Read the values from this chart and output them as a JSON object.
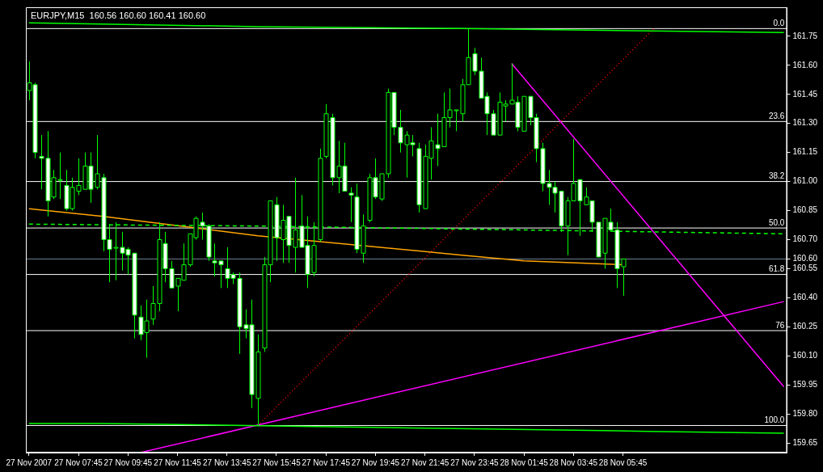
{
  "chart_data": {
    "type": "candlestick",
    "title": "EURJPY,M15  160.56 160.60 160.41 160.60",
    "color": "#00ff00",
    "colors": [
      "#000000",
      "#ffffff",
      "#ffffff",
      "#ffffff",
      "#000000",
      "#000000",
      "#ffffff",
      "#000000",
      "#000000",
      "#000000",
      "#ffffff",
      "#000000",
      "#ffffff",
      "#ffffff",
      "#000000",
      "#ffffff",
      "#ffffff",
      "#ffffff",
      "#ffffff",
      "#000000",
      "#000000",
      "#000000",
      "#ffffff",
      "#ffffff",
      "#000000",
      "#000000",
      "#000000",
      "#000000",
      "#ffffff",
      "#ffffff",
      "#ffffff",
      "#ffffff",
      "#ffffff",
      "#ffffff",
      "#ffffff",
      "#ffffff",
      "#ffffff",
      "#000000",
      "#000000",
      "#000000",
      "#ffffff",
      "#000000",
      "#ffffff",
      "#000000",
      "#ffffff",
      "#ffffff",
      "#000000",
      "#000000",
      "#000000",
      "#ffffff",
      "#000000",
      "#ffffff",
      "#ffffff",
      "#ffffff",
      "#000000",
      "#000000",
      "#ffffff",
      "#000000",
      "#000000",
      "#ffffff",
      "#ffffff",
      "#000000",
      "#ffffff",
      "#ffffff",
      "#000000",
      "#000000",
      "#ffffff",
      "#000000",
      "#000000",
      "#000000",
      "#000000",
      "#000000",
      "#ffffff",
      "#ffffff",
      "#ffffff",
      "#ffffff",
      "#000000",
      "#000000",
      "#000000",
      "#ffffff",
      "#000000",
      "#ffffff",
      "#ffffff",
      "#ffffff",
      "#ffffff",
      "#ffffff",
      "#ffffff",
      "#000000",
      "#000000",
      "#ffffff",
      "#000000",
      "#ffffff",
      "#ffffff",
      "#000000",
      "#ffffff",
      "#ffffff",
      "#000000",
      null,
      null,
      null,
      null,
      null,
      null,
      null,
      null,
      null,
      null,
      null,
      null,
      null,
      null,
      null,
      null,
      null,
      null,
      null,
      null,
      null,
      null,
      null,
      null,
      null,
      null
    ],
    "categories": [
      "27 Nov 2007",
      null,
      null,
      null,
      null,
      null,
      null,
      null,
      "27 Nov 07:45",
      null,
      null,
      null,
      null,
      null,
      null,
      null,
      "27 Nov 09:45",
      null,
      null,
      null,
      null,
      null,
      null,
      null,
      "27 Nov 11:45",
      null,
      null,
      null,
      null,
      null,
      null,
      null,
      "27 Nov 13:45",
      null,
      null,
      null,
      null,
      null,
      null,
      null,
      "27 Nov 15:45",
      null,
      null,
      null,
      null,
      null,
      null,
      null,
      "27 Nov 17:45",
      null,
      null,
      null,
      null,
      null,
      null,
      null,
      "27 Nov 19:45",
      null,
      null,
      null,
      null,
      null,
      null,
      null,
      "27 Nov 21:45",
      null,
      null,
      null,
      null,
      null,
      null,
      null,
      "27 Nov 23:45",
      null,
      null,
      null,
      null,
      null,
      null,
      null,
      "28 Nov 01:45",
      null,
      null,
      null,
      null,
      null,
      null,
      null,
      "28 Nov 03:45",
      null,
      null,
      null,
      null,
      null,
      null,
      null,
      "28 Nov 05:45",
      null,
      null,
      null,
      null,
      null,
      null,
      null,
      null,
      null,
      null,
      null,
      null,
      null,
      null,
      null,
      null,
      null,
      null,
      null,
      null,
      null,
      null,
      null,
      null,
      null,
      null
    ],
    "ohlc": [
      [
        161.47,
        161.62,
        161.42,
        161.51
      ],
      [
        161.5,
        161.51,
        161.12,
        161.15
      ],
      [
        161.13,
        161.24,
        160.96,
        161.12
      ],
      [
        161.12,
        161.26,
        160.82,
        160.9
      ],
      [
        160.92,
        161.06,
        160.91,
        161.02
      ],
      [
        161.01,
        161.15,
        160.91,
        161.01
      ],
      [
        160.98,
        161.06,
        160.85,
        160.86
      ],
      [
        160.86,
        161.02,
        160.85,
        160.97
      ],
      [
        160.95,
        161.12,
        160.93,
        160.98
      ],
      [
        160.96,
        161.15,
        160.96,
        161.08
      ],
      [
        161.08,
        161.15,
        160.89,
        160.96
      ],
      [
        160.97,
        161.24,
        160.96,
        161.04
      ],
      [
        161.02,
        161.04,
        160.64,
        160.7
      ],
      [
        160.7,
        160.78,
        160.48,
        160.65
      ],
      [
        160.66,
        160.79,
        160.49,
        160.66
      ],
      [
        160.66,
        160.74,
        160.54,
        160.63
      ],
      [
        160.65,
        160.66,
        160.52,
        160.62
      ],
      [
        160.63,
        160.63,
        160.19,
        160.31
      ],
      [
        160.3,
        160.36,
        160.18,
        160.21
      ],
      [
        160.22,
        160.39,
        160.09,
        160.28
      ],
      [
        160.29,
        160.46,
        160.26,
        160.37
      ],
      [
        160.37,
        160.79,
        160.33,
        160.7
      ],
      [
        160.68,
        160.74,
        160.48,
        160.55
      ],
      [
        160.55,
        160.59,
        160.45,
        160.45
      ],
      [
        160.46,
        160.5,
        160.33,
        160.5
      ],
      [
        160.49,
        160.68,
        160.49,
        160.57
      ],
      [
        160.57,
        160.73,
        160.56,
        160.73
      ],
      [
        160.71,
        160.82,
        160.7,
        160.81
      ],
      [
        160.79,
        160.84,
        160.7,
        160.77
      ],
      [
        160.77,
        160.78,
        160.59,
        160.61
      ],
      [
        160.59,
        160.68,
        160.51,
        160.58
      ],
      [
        160.59,
        160.59,
        160.45,
        160.57
      ],
      [
        160.55,
        160.66,
        160.45,
        160.5
      ],
      [
        160.52,
        160.53,
        160.47,
        160.5
      ],
      [
        160.5,
        160.53,
        160.11,
        160.25
      ],
      [
        160.26,
        160.34,
        160.19,
        160.24
      ],
      [
        160.26,
        160.39,
        159.83,
        159.9
      ],
      [
        159.88,
        160.21,
        159.74,
        160.12
      ],
      [
        160.14,
        160.61,
        160.12,
        160.57
      ],
      [
        160.57,
        160.9,
        160.48,
        160.9
      ],
      [
        160.88,
        160.92,
        160.59,
        160.71
      ],
      [
        160.7,
        160.88,
        160.58,
        160.8
      ],
      [
        160.82,
        160.82,
        160.58,
        160.67
      ],
      [
        160.66,
        161.02,
        160.53,
        160.75
      ],
      [
        160.77,
        160.93,
        160.66,
        160.66
      ],
      [
        160.67,
        160.82,
        160.45,
        160.52
      ],
      [
        160.53,
        160.79,
        160.51,
        160.67
      ],
      [
        160.7,
        161.17,
        160.69,
        161.12
      ],
      [
        161.13,
        161.4,
        161.12,
        161.35
      ],
      [
        161.33,
        161.35,
        160.98,
        161.02
      ],
      [
        161.02,
        161.21,
        160.94,
        161.08
      ],
      [
        161.08,
        161.2,
        160.95,
        160.95
      ],
      [
        160.94,
        160.97,
        160.79,
        160.93
      ],
      [
        160.92,
        160.99,
        160.63,
        160.65
      ],
      [
        160.63,
        160.83,
        160.58,
        160.77
      ],
      [
        160.8,
        161.04,
        160.79,
        161.02
      ],
      [
        161.02,
        161.12,
        160.91,
        160.92
      ],
      [
        160.91,
        161.04,
        160.9,
        161.04
      ],
      [
        161.04,
        161.48,
        161.02,
        161.46
      ],
      [
        161.46,
        161.46,
        161.24,
        161.28
      ],
      [
        161.28,
        161.37,
        161.15,
        161.2
      ],
      [
        161.19,
        161.26,
        161.02,
        161.24
      ],
      [
        161.2,
        161.24,
        161.13,
        161.19
      ],
      [
        161.17,
        161.2,
        160.84,
        160.88
      ],
      [
        160.86,
        161.19,
        160.86,
        161.13
      ],
      [
        161.12,
        161.28,
        161.01,
        161.21
      ],
      [
        161.19,
        161.35,
        161.08,
        161.17
      ],
      [
        161.18,
        161.46,
        161.18,
        161.33
      ],
      [
        161.33,
        161.48,
        161.28,
        161.37
      ],
      [
        161.37,
        161.37,
        161.26,
        161.37
      ],
      [
        161.35,
        161.53,
        161.31,
        161.5
      ],
      [
        161.5,
        161.79,
        161.5,
        161.64
      ],
      [
        161.66,
        161.69,
        161.55,
        161.57
      ],
      [
        161.57,
        161.64,
        161.43,
        161.43
      ],
      [
        161.44,
        161.46,
        161.24,
        161.35
      ],
      [
        161.35,
        161.37,
        161.24,
        161.24
      ],
      [
        161.24,
        161.46,
        161.24,
        161.41
      ],
      [
        161.39,
        161.42,
        161.31,
        161.4
      ],
      [
        161.4,
        161.61,
        161.4,
        161.42
      ],
      [
        161.41,
        161.44,
        161.26,
        161.28
      ],
      [
        161.26,
        161.44,
        161.26,
        161.44
      ],
      [
        161.44,
        161.44,
        161.29,
        161.33
      ],
      [
        161.33,
        161.35,
        161.1,
        161.17
      ],
      [
        161.17,
        161.2,
        160.95,
        160.99
      ],
      [
        160.99,
        161.06,
        160.88,
        160.97
      ],
      [
        160.97,
        161.0,
        160.84,
        160.94
      ],
      [
        160.95,
        160.95,
        160.74,
        160.77
      ],
      [
        160.77,
        160.92,
        160.62,
        160.9
      ],
      [
        160.9,
        161.22,
        160.9,
        160.99
      ],
      [
        161.01,
        161.01,
        160.72,
        160.9
      ],
      [
        160.88,
        160.97,
        160.88,
        160.92
      ],
      [
        160.9,
        160.9,
        160.74,
        160.79
      ],
      [
        160.79,
        160.79,
        160.61,
        160.61
      ],
      [
        160.63,
        160.81,
        160.55,
        160.81
      ],
      [
        160.79,
        160.86,
        160.74,
        160.75
      ],
      [
        160.75,
        160.79,
        160.45,
        160.55
      ],
      [
        160.56,
        160.6,
        160.41,
        160.6
      ],
      null,
      null,
      null,
      null,
      null,
      null,
      null,
      null,
      null,
      null,
      null,
      null,
      null,
      null,
      null,
      null,
      null,
      null,
      null,
      null,
      null,
      null,
      null,
      null,
      null,
      null
    ],
    "series": [
      {
        "type": "line",
        "color": "#00ff00",
        "values": [
          161.82,
          null,
          null,
          null,
          null,
          null,
          null,
          null,
          null,
          null,
          null,
          null,
          null,
          null,
          null,
          null,
          null,
          null,
          null,
          null,
          null,
          null,
          null,
          null,
          null,
          null,
          null,
          null,
          null,
          null,
          null,
          null,
          null,
          null,
          null,
          null,
          null,
          161.8,
          null,
          null,
          null,
          null,
          null,
          null,
          null,
          null,
          null,
          null,
          null,
          null,
          null,
          null,
          null,
          null,
          null,
          null,
          null,
          null,
          null,
          null,
          null,
          null,
          null,
          null,
          null,
          null,
          null,
          null,
          null,
          null,
          161.79,
          null,
          null,
          null,
          null,
          null,
          null,
          null,
          null,
          null,
          null,
          null,
          null,
          null,
          null,
          null,
          null,
          null,
          null,
          null,
          null,
          null,
          null,
          null,
          null,
          null,
          null,
          null,
          null,
          null,
          null,
          null,
          null,
          null,
          null,
          null,
          null,
          null,
          null,
          null,
          null,
          null,
          null,
          null,
          null,
          null,
          null,
          null,
          null,
          null,
          null,
          null,
          161.77
        ]
      },
      {
        "type": "line",
        "color": "#00ff00",
        "values": [
          159.75,
          null,
          null,
          null,
          null,
          null,
          null,
          null,
          null,
          null,
          null,
          null,
          159.75,
          null,
          null,
          null,
          null,
          null,
          null,
          null,
          null,
          null,
          null,
          null,
          null,
          null,
          null,
          null,
          null,
          null,
          null,
          null,
          null,
          null,
          null,
          159.74,
          null,
          null,
          null,
          null,
          null,
          null,
          null,
          null,
          null,
          null,
          null,
          null,
          null,
          null,
          null,
          null,
          null,
          null,
          null,
          null,
          null,
          null,
          null,
          null,
          null,
          null,
          null,
          null,
          null,
          null,
          null,
          null,
          null,
          null,
          null,
          null,
          null,
          null,
          null,
          null,
          null,
          null,
          null,
          null,
          null,
          null,
          null,
          null,
          null,
          null,
          null,
          null,
          null,
          null,
          null,
          null,
          null,
          null,
          null,
          null,
          null,
          null,
          null,
          null,
          159.71,
          null,
          null,
          null,
          null,
          null,
          null,
          null,
          null,
          null,
          null,
          null,
          null,
          null,
          null,
          null,
          null,
          null,
          null,
          null,
          null,
          null,
          159.7
        ]
      },
      {
        "type": "line",
        "color": "#00ff00",
        "line_style": "dashed",
        "values": [
          160.78,
          null,
          null,
          null,
          null,
          null,
          null,
          null,
          null,
          null,
          null,
          null,
          null,
          null,
          null,
          null,
          null,
          null,
          null,
          null,
          null,
          null,
          null,
          null,
          null,
          null,
          null,
          null,
          null,
          null,
          null,
          null,
          null,
          null,
          null,
          null,
          null,
          160.77,
          null,
          null,
          null,
          null,
          null,
          null,
          null,
          null,
          null,
          null,
          null,
          null,
          null,
          null,
          null,
          null,
          null,
          null,
          null,
          null,
          null,
          null,
          null,
          null,
          null,
          null,
          null,
          null,
          null,
          null,
          null,
          null,
          null,
          null,
          null,
          null,
          null,
          null,
          null,
          null,
          null,
          null,
          160.75,
          null,
          null,
          null,
          null,
          null,
          null,
          null,
          null,
          null,
          null,
          null,
          null,
          null,
          null,
          null,
          null,
          null,
          null,
          null,
          null,
          null,
          null,
          null,
          null,
          null,
          null,
          null,
          null,
          null,
          null,
          null,
          null,
          null,
          null,
          null,
          null,
          null,
          null,
          null,
          null,
          null,
          160.73
        ]
      },
      {
        "type": "line",
        "color": "#ffa500",
        "values": [
          160.86,
          null,
          null,
          null,
          null,
          null,
          null,
          null,
          null,
          null,
          null,
          null,
          160.82,
          null,
          null,
          null,
          null,
          null,
          null,
          null,
          null,
          null,
          null,
          null,
          null,
          null,
          null,
          null,
          null,
          null,
          null,
          null,
          null,
          null,
          null,
          null,
          null,
          160.72,
          null,
          null,
          null,
          null,
          null,
          null,
          null,
          null,
          null,
          null,
          null,
          null,
          null,
          null,
          null,
          null,
          null,
          null,
          null,
          null,
          null,
          null,
          null,
          null,
          null,
          null,
          null,
          null,
          null,
          null,
          null,
          null,
          160.62,
          null,
          null,
          null,
          null,
          null,
          null,
          null,
          null,
          null,
          160.59,
          null,
          null,
          null,
          null,
          null,
          null,
          null,
          null,
          null,
          null,
          null,
          null,
          null,
          null,
          null,
          160.57,
          null,
          null,
          null,
          null,
          null,
          null,
          null,
          null,
          null,
          null,
          null,
          null,
          null,
          null,
          null,
          null,
          null,
          null,
          null,
          null,
          null,
          null,
          null,
          null,
          null,
          null
        ]
      },
      {
        "type": "line",
        "color": "#ff0000",
        "line_style": "dotted",
        "values": [
          null,
          null,
          null,
          null,
          null,
          null,
          null,
          null,
          null,
          null,
          null,
          null,
          null,
          null,
          null,
          null,
          null,
          null,
          null,
          null,
          null,
          null,
          null,
          null,
          null,
          null,
          null,
          null,
          null,
          null,
          null,
          null,
          null,
          null,
          null,
          null,
          null,
          159.74,
          null,
          null,
          null,
          null,
          null,
          null,
          null,
          null,
          null,
          null,
          null,
          null,
          null,
          null,
          null,
          null,
          null,
          null,
          null,
          null,
          null,
          null,
          null,
          null,
          null,
          null,
          null,
          null,
          null,
          null,
          null,
          null,
          null,
          null,
          null,
          null,
          null,
          null,
          null,
          null,
          null,
          null,
          null,
          null,
          null,
          null,
          null,
          null,
          null,
          null,
          null,
          null,
          null,
          null,
          null,
          null,
          null,
          null,
          null,
          null,
          null,
          null,
          null,
          161.79,
          null,
          null,
          null,
          null,
          null,
          null,
          null,
          null,
          null,
          null,
          null,
          null,
          null,
          null,
          null,
          null,
          null,
          null,
          null,
          null,
          null
        ]
      },
      {
        "type": "line",
        "color": "#ff00ff",
        "values": [
          null,
          null,
          null,
          null,
          null,
          null,
          null,
          null,
          null,
          null,
          null,
          null,
          null,
          null,
          null,
          null,
          null,
          null,
          null,
          null,
          null,
          null,
          null,
          null,
          null,
          null,
          null,
          null,
          null,
          null,
          null,
          null,
          null,
          null,
          null,
          null,
          null,
          null,
          null,
          null,
          null,
          null,
          null,
          null,
          null,
          null,
          null,
          null,
          null,
          null,
          null,
          null,
          null,
          null,
          null,
          null,
          null,
          null,
          null,
          null,
          null,
          null,
          null,
          null,
          null,
          null,
          null,
          null,
          null,
          null,
          null,
          null,
          null,
          null,
          null,
          null,
          null,
          null,
          161.61,
          null,
          null,
          null,
          null,
          null,
          null,
          null,
          null,
          null,
          null,
          null,
          null,
          null,
          null,
          null,
          null,
          null,
          null,
          null,
          null,
          null,
          null,
          null,
          null,
          null,
          null,
          null,
          null,
          null,
          null,
          null,
          null,
          null,
          null,
          null,
          null,
          null,
          null,
          null,
          null,
          null,
          null,
          null,
          159.94
        ]
      },
      {
        "type": "line",
        "color": "#ff00ff",
        "values": [
          null,
          null,
          null,
          null,
          null,
          null,
          null,
          null,
          null,
          null,
          null,
          null,
          null,
          null,
          null,
          null,
          null,
          null,
          159.6,
          null,
          null,
          null,
          null,
          null,
          null,
          null,
          null,
          null,
          null,
          null,
          null,
          null,
          null,
          null,
          null,
          null,
          null,
          null,
          null,
          null,
          null,
          null,
          null,
          null,
          null,
          null,
          null,
          null,
          null,
          null,
          null,
          null,
          null,
          null,
          null,
          null,
          null,
          null,
          null,
          null,
          null,
          null,
          null,
          null,
          null,
          null,
          null,
          null,
          null,
          null,
          null,
          null,
          null,
          null,
          null,
          null,
          null,
          null,
          null,
          null,
          null,
          null,
          null,
          null,
          null,
          null,
          null,
          null,
          null,
          null,
          null,
          null,
          null,
          null,
          null,
          null,
          null,
          null,
          null,
          null,
          null,
          null,
          null,
          null,
          null,
          null,
          null,
          null,
          null,
          null,
          null,
          null,
          null,
          null,
          null,
          null,
          null,
          null,
          null,
          null,
          null,
          null,
          160.38
        ]
      }
    ],
    "ref_lines": [
      {
        "axis": "y",
        "value": 161.79,
        "color": "#ffffff"
      },
      {
        "axis": "y",
        "value": 161.31,
        "color": "#ffffff"
      },
      {
        "axis": "y",
        "value": 161.0,
        "color": "#ffffff"
      },
      {
        "axis": "y",
        "value": 160.76,
        "color": "#ffffff"
      },
      {
        "axis": "y",
        "value": 160.52,
        "color": "#ffffff"
      },
      {
        "axis": "y",
        "value": 160.23,
        "color": "#ffffff"
      },
      {
        "axis": "y",
        "value": 159.74,
        "color": "#ffffff"
      },
      {
        "axis": "y",
        "value": 160.6,
        "color": "#708090"
      }
    ],
    "annotations": [
      {
        "text": "0.0",
        "y": 161.79
      },
      {
        "text": "23.6",
        "y": 161.31
      },
      {
        "text": "38.2",
        "y": 161.0
      },
      {
        "text": "50.0",
        "y": 160.76
      },
      {
        "text": "61.8",
        "y": 160.52
      },
      {
        "text": "76",
        "y": 160.23
      },
      {
        "text": "100.0",
        "y": 159.74
      }
    ],
    "ylim": [
      159.6,
      161.9
    ],
    "yticks": [
      159.65,
      {
        "value": 159.8,
        "label": "159.80"
      },
      159.95,
      {
        "value": 160.1,
        "label": "160.10"
      },
      160.25,
      {
        "value": 160.4,
        "label": "160.40"
      },
      160.55,
      {
        "value": 160.6,
        "label": "160.60"
      },
      {
        "value": 160.7,
        "label": "160.70"
      },
      160.85,
      {
        "value": 161.0,
        "label": "161.00"
      },
      161.15,
      {
        "value": 161.3,
        "label": "161.30"
      },
      161.45,
      {
        "value": 161.6,
        "label": "161.60"
      },
      161.75
    ]
  }
}
